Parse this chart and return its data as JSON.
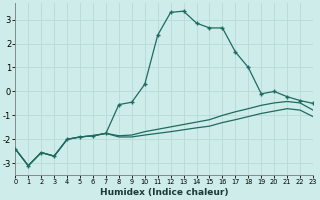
{
  "xlabel": "Humidex (Indice chaleur)",
  "bg_color": "#ceecea",
  "grid_color": "#b8dbd8",
  "line_color": "#1e6b60",
  "x_values": [
    0,
    1,
    2,
    3,
    4,
    5,
    6,
    7,
    8,
    9,
    10,
    11,
    12,
    13,
    14,
    15,
    16,
    17,
    18,
    19,
    20,
    21,
    22,
    23
  ],
  "y_main": [
    -2.4,
    -3.1,
    -2.55,
    -2.7,
    -2.0,
    -1.9,
    -1.85,
    -1.75,
    -0.55,
    -0.45,
    0.3,
    2.35,
    3.3,
    3.35,
    2.85,
    2.65,
    2.65,
    1.65,
    1.0,
    -0.1,
    0.0,
    -0.22,
    -0.38,
    -0.5
  ],
  "y_upper": [
    -2.4,
    -3.1,
    -2.55,
    -2.7,
    -2.0,
    -1.9,
    -1.85,
    -1.75,
    -1.85,
    -1.82,
    -1.68,
    -1.58,
    -1.48,
    -1.38,
    -1.28,
    -1.18,
    -1.0,
    -0.85,
    -0.72,
    -0.58,
    -0.48,
    -0.42,
    -0.48,
    -0.78
  ],
  "y_lower": [
    -2.4,
    -3.1,
    -2.55,
    -2.7,
    -2.0,
    -1.9,
    -1.85,
    -1.75,
    -1.9,
    -1.9,
    -1.82,
    -1.75,
    -1.68,
    -1.6,
    -1.52,
    -1.45,
    -1.3,
    -1.18,
    -1.05,
    -0.92,
    -0.82,
    -0.72,
    -0.78,
    -1.05
  ],
  "ylim": [
    -3.5,
    3.7
  ],
  "xlim": [
    0,
    23
  ],
  "yticks": [
    -3,
    -2,
    -1,
    0,
    1,
    2,
    3
  ],
  "xticks": [
    0,
    1,
    2,
    3,
    4,
    5,
    6,
    7,
    8,
    9,
    10,
    11,
    12,
    13,
    14,
    15,
    16,
    17,
    18,
    19,
    20,
    21,
    22,
    23
  ]
}
